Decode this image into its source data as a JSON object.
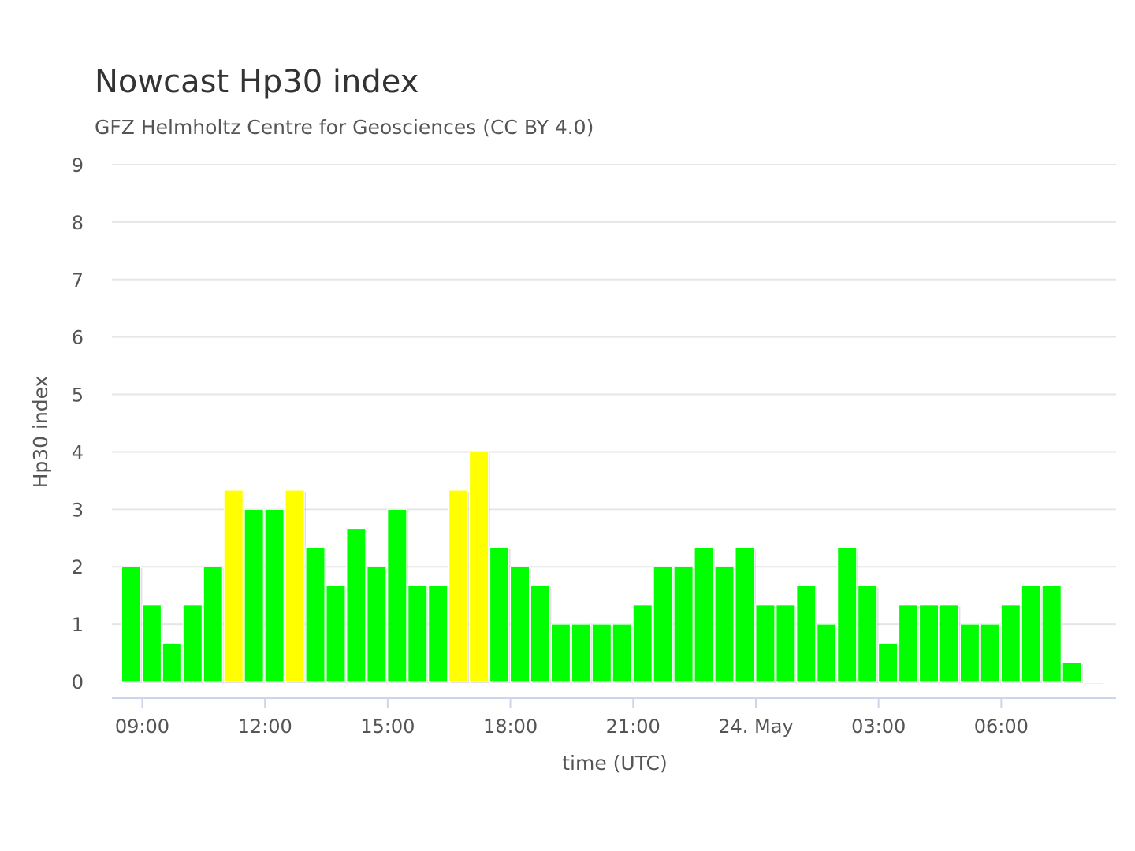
{
  "chart_data": {
    "type": "bar",
    "title": "Nowcast Hp30 index",
    "subtitle": "GFZ Helmholtz Centre for Geosciences (CC BY 4.0)",
    "xlabel": "time (UTC)",
    "ylabel": "Hp30 index",
    "ylim": [
      0,
      9
    ],
    "yticks": [
      0,
      1,
      2,
      3,
      4,
      5,
      6,
      7,
      8,
      9
    ],
    "x_start": "2024-05-23 08:30",
    "x_interval": "30 min",
    "xtick_labels": [
      {
        "time": "09:00",
        "label": "09:00"
      },
      {
        "time": "12:00",
        "label": "12:00"
      },
      {
        "time": "15:00",
        "label": "15:00"
      },
      {
        "time": "18:00",
        "label": "18:00"
      },
      {
        "time": "21:00",
        "label": "21:00"
      },
      {
        "time": "00:00",
        "label": "24. May"
      },
      {
        "time": "03:00",
        "label": "03:00"
      },
      {
        "time": "06:00",
        "label": "06:00"
      }
    ],
    "grid": true,
    "legend": "none",
    "colors": {
      "low": "#00ff00",
      "elevated": "#ffff00",
      "grid": "#e6e6e6",
      "axis": "#ccd6eb"
    },
    "color_rule": "yellow when value >= 3.33",
    "values": [
      2,
      1.333,
      0.667,
      1.333,
      2,
      3.333,
      3,
      3,
      3.333,
      2.333,
      1.667,
      2.667,
      2,
      3,
      1.667,
      1.667,
      3.333,
      4,
      2.333,
      2,
      1.667,
      1,
      1,
      1,
      1,
      1.333,
      2,
      2,
      2.333,
      2,
      2.333,
      1.333,
      1.333,
      1.667,
      1,
      2.333,
      1.667,
      0.667,
      1.333,
      1.333,
      1.333,
      1,
      1,
      1.333,
      1.667,
      1.667,
      0.333,
      0
    ]
  }
}
